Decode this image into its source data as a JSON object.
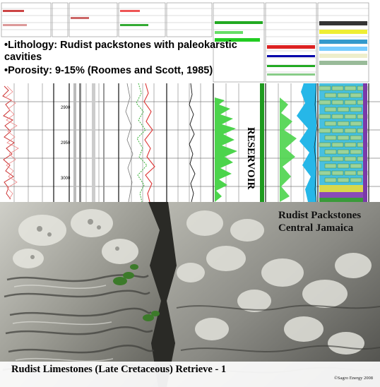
{
  "bullets": [
    "•Lithology:  Rudist packstones with paleokarstic cavities",
    "•Porosity: 9-15% (Roomes and Scott, 1985)"
  ],
  "log_panel": {
    "depth_labels": [
      "2900",
      "2950",
      "3000"
    ],
    "zone_label": "RESERVOIR"
  },
  "photo": {
    "caption_line1": "Rudist Packstones",
    "caption_line2": "Central Jamaica"
  },
  "footer": {
    "title": "Rudist Limestones (Late Cretaceous) Retrieve - 1",
    "credit": "©Sagro Energy 2008"
  }
}
